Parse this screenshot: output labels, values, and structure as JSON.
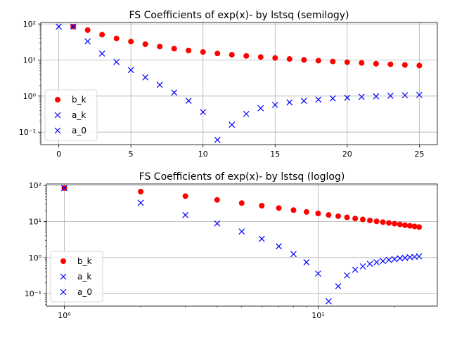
{
  "chart_data": [
    {
      "type": "scatter",
      "title": "FS Coefficients of exp(x)- by lstsq (semilogy)",
      "xscale": "linear",
      "yscale": "log",
      "xlim": [
        -1.25,
        26.25
      ],
      "ylim": [
        0.045,
        110
      ],
      "grid": true,
      "legend_position": "lower-left",
      "x_ticks": [
        0,
        5,
        10,
        15,
        20,
        25
      ],
      "x_tick_labels": [
        "0",
        "5",
        "10",
        "15",
        "20",
        "25"
      ],
      "y_ticks": [
        0.1,
        1,
        10,
        100
      ],
      "y_tick_labels": [
        "10⁻¹",
        "10⁰",
        "10¹",
        "10²"
      ],
      "series": [
        {
          "name": "b_k",
          "marker": "circle",
          "color": "#ff0000",
          "x": [
            1,
            2,
            3,
            4,
            5,
            6,
            7,
            8,
            9,
            10,
            11,
            12,
            13,
            14,
            15,
            16,
            17,
            18,
            19,
            20,
            21,
            22,
            23,
            24,
            25
          ],
          "y": [
            84.4,
            67.5,
            50.6,
            39.7,
            32.5,
            27.4,
            23.6,
            20.7,
            18.4,
            16.7,
            15.2,
            14.0,
            13.0,
            12.1,
            11.4,
            10.7,
            10.1,
            9.6,
            9.1,
            8.7,
            8.3,
            7.9,
            7.6,
            7.3,
            7.0
          ]
        },
        {
          "name": "a_k",
          "marker": "x",
          "color": "#0000ff",
          "x": [
            1,
            2,
            3,
            4,
            5,
            6,
            7,
            8,
            9,
            10,
            11,
            12,
            13,
            14,
            15,
            16,
            17,
            18,
            19,
            20,
            21,
            22,
            23,
            24,
            25
          ],
          "y": [
            84.4,
            33.0,
            15.1,
            8.8,
            5.3,
            3.3,
            2.05,
            1.25,
            0.74,
            0.36,
            0.061,
            0.16,
            0.32,
            0.46,
            0.57,
            0.67,
            0.74,
            0.8,
            0.86,
            0.9,
            0.95,
            0.98,
            1.02,
            1.05,
            1.08
          ]
        },
        {
          "name": "a_0",
          "marker": "x",
          "color": "#0000ff",
          "x": [
            0
          ],
          "y": [
            84.4
          ]
        }
      ]
    },
    {
      "type": "scatter",
      "title": "FS Coefficients of exp(x)-  by lstsq (loglog)",
      "xscale": "log",
      "yscale": "log",
      "xlim": [
        0.85,
        29.5
      ],
      "ylim": [
        0.045,
        110
      ],
      "grid": true,
      "legend_position": "lower-left",
      "x_ticks": [
        1,
        10
      ],
      "x_tick_labels": [
        "10⁰",
        "10¹"
      ],
      "y_ticks": [
        0.1,
        1,
        10,
        100
      ],
      "y_tick_labels": [
        "10⁻¹",
        "10⁰",
        "10¹",
        "10²"
      ],
      "series": [
        {
          "name": "b_k",
          "marker": "circle",
          "color": "#ff0000",
          "x": [
            1,
            2,
            3,
            4,
            5,
            6,
            7,
            8,
            9,
            10,
            11,
            12,
            13,
            14,
            15,
            16,
            17,
            18,
            19,
            20,
            21,
            22,
            23,
            24,
            25
          ],
          "y": [
            84.4,
            67.5,
            50.6,
            39.7,
            32.5,
            27.4,
            23.6,
            20.7,
            18.4,
            16.7,
            15.2,
            14.0,
            13.0,
            12.1,
            11.4,
            10.7,
            10.1,
            9.6,
            9.1,
            8.7,
            8.3,
            7.9,
            7.6,
            7.3,
            7.0
          ]
        },
        {
          "name": "a_k",
          "marker": "x",
          "color": "#0000ff",
          "x": [
            1,
            2,
            3,
            4,
            5,
            6,
            7,
            8,
            9,
            10,
            11,
            12,
            13,
            14,
            15,
            16,
            17,
            18,
            19,
            20,
            21,
            22,
            23,
            24,
            25
          ],
          "y": [
            84.4,
            33.0,
            15.1,
            8.8,
            5.3,
            3.3,
            2.05,
            1.25,
            0.74,
            0.36,
            0.061,
            0.16,
            0.32,
            0.46,
            0.57,
            0.67,
            0.74,
            0.8,
            0.86,
            0.9,
            0.95,
            0.98,
            1.02,
            1.05,
            1.08
          ]
        },
        {
          "name": "a_0",
          "marker": "x",
          "color": "#0000ff",
          "x": [
            1
          ],
          "y": [
            84.4
          ]
        }
      ]
    }
  ]
}
